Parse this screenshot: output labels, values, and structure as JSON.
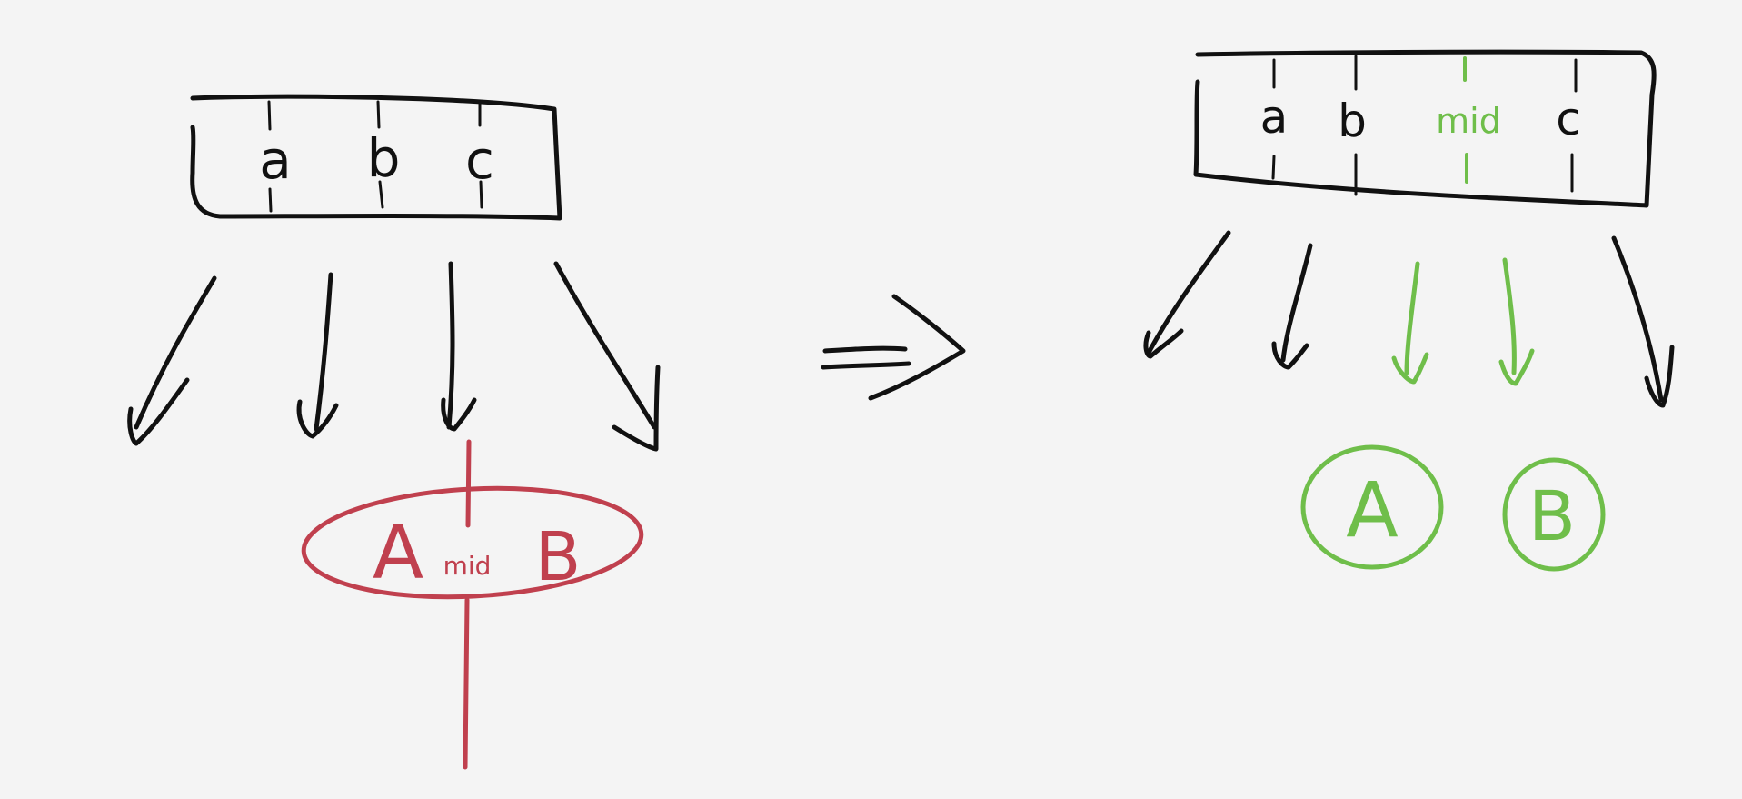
{
  "colors": {
    "background": "#f4f4f4",
    "ink": "#111111",
    "split": "#c0404e",
    "result": "#6fbe4a"
  },
  "before": {
    "keys": [
      "a",
      "b",
      "c"
    ],
    "child_count": 4,
    "overflow_node": {
      "left": "A",
      "middle": "mid",
      "right": "B"
    }
  },
  "transition": {
    "symbol": "⇒",
    "icon": "implies-arrow-icon"
  },
  "after": {
    "keys": [
      "a",
      "b",
      "mid",
      "c"
    ],
    "child_count": 5,
    "new_children": [
      "A",
      "B"
    ]
  }
}
